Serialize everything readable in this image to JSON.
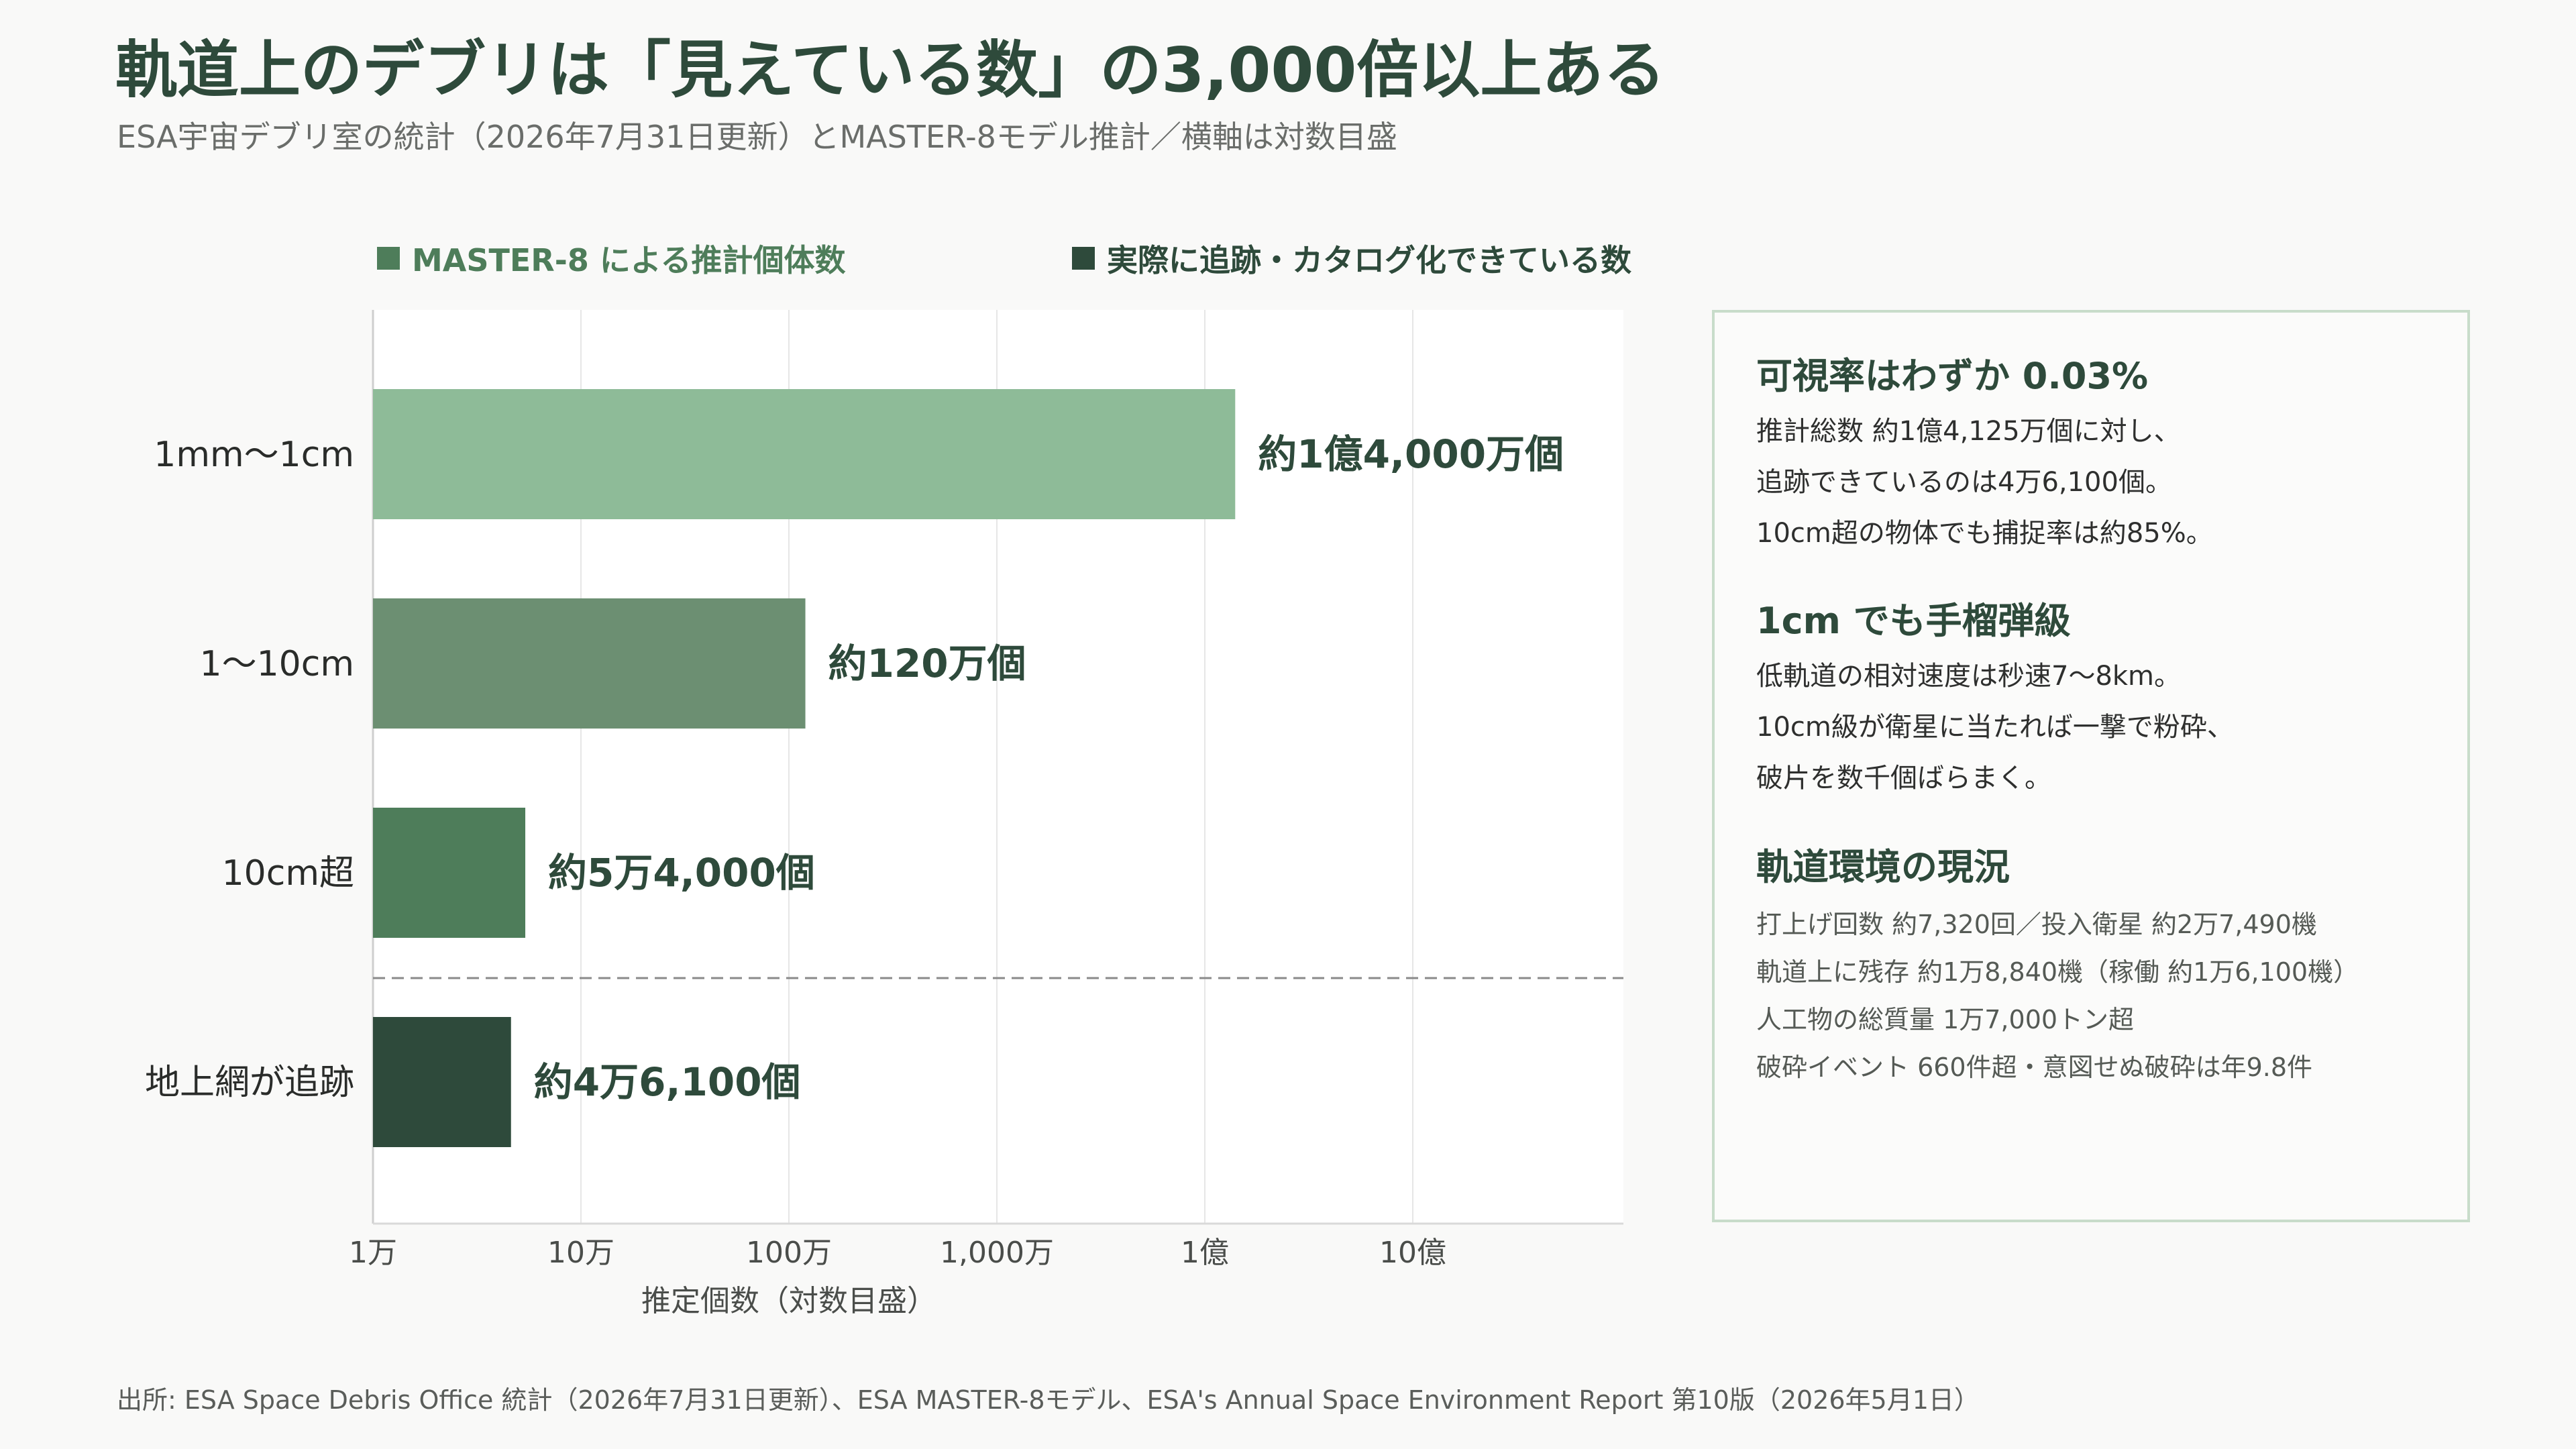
{
  "header": {
    "title": "軌道上のデブリは「見えている数」の3,000倍以上ある",
    "subtitle": "ESA宇宙デブリ室の統計（2026年7月31日更新）とMASTER-8モデル推計／横軸は対数目盛"
  },
  "legend": {
    "estimated": "MASTER-8 による推計個体数",
    "tracked": "実際に追跡・カタログ化できている数"
  },
  "colors": {
    "estimated_1mm": "#8ebb98",
    "estimated_1cm": "#6c8f72",
    "estimated_10cm": "#4e7d5a",
    "tracked": "#2e4a3b"
  },
  "chart_data": {
    "type": "bar",
    "orientation": "horizontal",
    "x_scale": "log",
    "xlim": [
      10000,
      10000000000
    ],
    "xlabel": "推定個数（対数目盛）",
    "x_ticks": [
      {
        "value": 10000,
        "label": "1万"
      },
      {
        "value": 100000,
        "label": "10万"
      },
      {
        "value": 1000000,
        "label": "100万"
      },
      {
        "value": 10000000,
        "label": "1,000万"
      },
      {
        "value": 100000000,
        "label": "1億"
      },
      {
        "value": 1000000000,
        "label": "10億"
      }
    ],
    "grid": true,
    "legend_position": "top",
    "categories": [
      "1mm〜1cm",
      "1〜10cm",
      "10cm超",
      "地上網が追跡"
    ],
    "values": [
      140000000,
      1200000,
      54000,
      46100
    ],
    "data_labels": [
      "約1億4,000万個",
      "約120万個",
      "約5万4,000個",
      "約4万6,100個"
    ],
    "bar_colors": [
      "#8ebb98",
      "#6c8f72",
      "#4e7d5a",
      "#2e4a3b"
    ],
    "series_membership": [
      "estimated",
      "estimated",
      "estimated",
      "tracked"
    ]
  },
  "panel": {
    "section1": {
      "heading": "可視率はわずか 0.03%",
      "lines": [
        "推計総数 約1億4,125万個に対し、",
        "追跡できているのは4万6,100個。",
        "10cm超の物体でも捕捉率は約85%。"
      ]
    },
    "section2": {
      "heading": "1cm でも手榴弾級",
      "lines": [
        "低軌道の相対速度は秒速7〜8km。",
        "10cm級が衛星に当たれば一撃で粉砕、",
        "破片を数千個ばらまく。"
      ]
    },
    "section3": {
      "heading": "軌道環境の現況",
      "lines": [
        "打上げ回数 約7,320回／投入衛星 約2万7,490機",
        "軌道上に残存 約1万8,840機（稼働 約1万6,100機）",
        "人工物の総質量 1万7,000トン超",
        "破砕イベント 660件超・意図せぬ破砕は年9.8件"
      ]
    }
  },
  "source": "出所: ESA Space Debris Office 統計（2026年7月31日更新）、ESA MASTER-8モデル、ESA's Annual Space Environment Report 第10版（2026年5月1日）"
}
